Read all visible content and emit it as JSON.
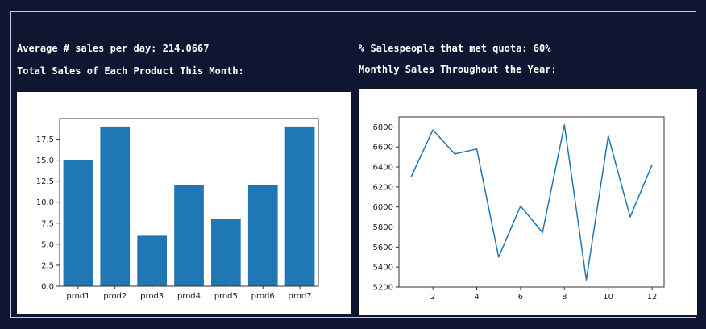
{
  "header": {
    "avg_sales_text": "Average # sales per day: 214.0667",
    "quota_text": "% Salespeople that met quota: 60%",
    "bar_title": "Total Sales of Each Product This Month:",
    "line_title": "Monthly Sales Throughout the Year:"
  },
  "chart_data": [
    {
      "type": "bar",
      "categories": [
        "prod1",
        "prod2",
        "prod3",
        "prod4",
        "prod5",
        "prod6",
        "prod7"
      ],
      "values": [
        15,
        19,
        6,
        12,
        8,
        12,
        19
      ],
      "ylim": [
        0,
        19.95
      ],
      "yticks": [
        0.0,
        2.5,
        5.0,
        7.5,
        10.0,
        12.5,
        15.0,
        17.5
      ],
      "title": "",
      "xlabel": "",
      "ylabel": "",
      "grid": false,
      "color": "#1f77b4"
    },
    {
      "type": "line",
      "x": [
        1,
        2,
        3,
        4,
        5,
        6,
        7,
        8,
        9,
        10,
        11,
        12
      ],
      "y": [
        6300,
        6770,
        6530,
        6580,
        5500,
        6010,
        5745,
        6820,
        5270,
        6710,
        5900,
        6420
      ],
      "xlim": [
        0.45,
        12.55
      ],
      "ylim": [
        5200,
        6900
      ],
      "xticks": [
        2,
        4,
        6,
        8,
        10,
        12
      ],
      "yticks": [
        5200,
        5400,
        5600,
        5800,
        6000,
        6200,
        6400,
        6600,
        6800
      ],
      "title": "",
      "xlabel": "",
      "ylabel": "",
      "grid": false,
      "color": "#1f77b4"
    }
  ]
}
